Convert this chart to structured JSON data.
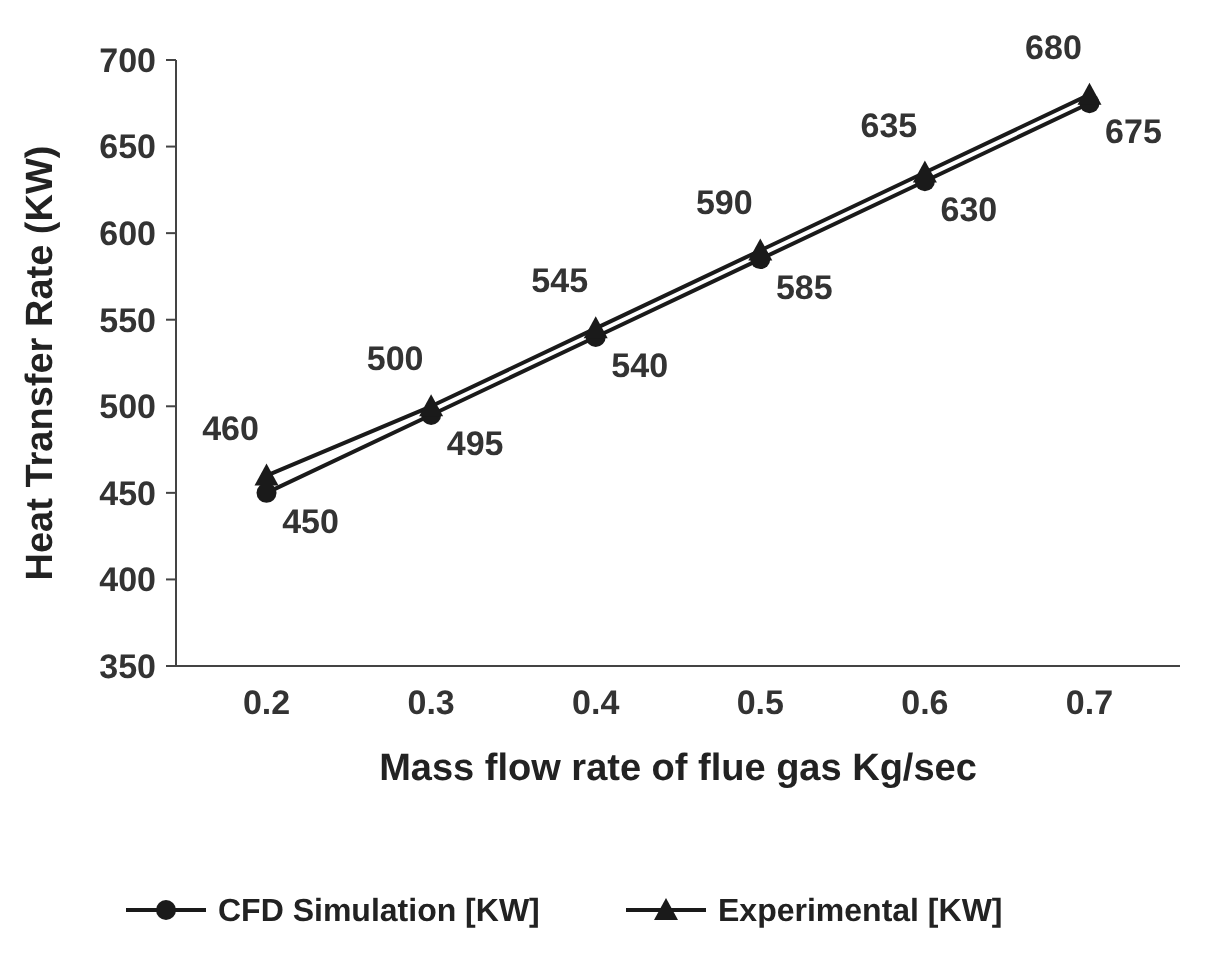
{
  "chart_data": {
    "type": "line",
    "xlabel": "Mass flow rate of flue gas Kg/sec",
    "ylabel": "Heat Transfer Rate (KW)",
    "categories": [
      "0.2",
      "0.3",
      "0.4",
      "0.5",
      "0.6",
      "0.7"
    ],
    "series": [
      {
        "name": "CFD Simulation [KW]",
        "color": "#1a1a1a",
        "marker": "circle",
        "values": [
          450,
          495,
          540,
          585,
          630,
          675
        ]
      },
      {
        "name": "Experimental [KW]",
        "color": "#1a1a1a",
        "marker": "triangle",
        "values": [
          460,
          500,
          545,
          590,
          635,
          680
        ]
      }
    ],
    "ylim": [
      350,
      700
    ],
    "yticks": [
      350,
      400,
      450,
      500,
      550,
      600,
      650,
      700
    ],
    "grid": false,
    "legend": "bottom",
    "data_labels": true,
    "line_style": "solid"
  }
}
